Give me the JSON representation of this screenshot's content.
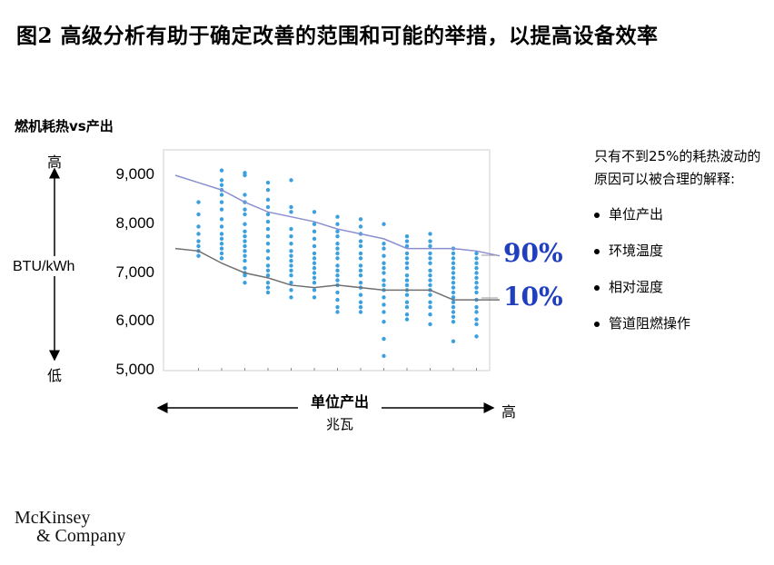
{
  "title": "图2 高级分析有助于确定改善的范围和可能的举措，以提高设备效率",
  "subtitle": "燃机耗热vs产出",
  "y_axis": {
    "top_label": "高",
    "unit": "BTU/kWh",
    "bottom_label": "低"
  },
  "x_axis": {
    "title": "单位产出",
    "unit": "兆瓦",
    "right_label": "高"
  },
  "percentile_labels": {
    "p90": "90%",
    "p10": "10%"
  },
  "notes": {
    "intro": "只有不到25%的耗热波动的原因可以被合理的解释:",
    "bullets": [
      "单位产出",
      "环境温度",
      "相对湿度",
      "管道阻燃操作"
    ]
  },
  "logo": {
    "line1": "McKinsey",
    "line2": "& Company"
  },
  "colors": {
    "dots": "#3aa0e0",
    "p90_line": "#8a8fd0",
    "p10_line": "#707070",
    "pct_text": "#1f3fbf",
    "grid": "#dddddd"
  },
  "chart_data": {
    "type": "scatter",
    "xlabel": "单位产出",
    "ylabel": "BTU/kWh",
    "ylim": [
      5000,
      9000
    ],
    "yticks": [
      "9,000",
      "8,000",
      "7,000",
      "6,000",
      "5,000"
    ],
    "ytick_values": [
      9000,
      8000,
      7000,
      6000,
      5000
    ],
    "grid": false,
    "columns": [
      {
        "x": 1,
        "y": [
          8450,
          8200,
          7950,
          7800,
          7650,
          7550,
          7450,
          7350
        ]
      },
      {
        "x": 2,
        "y": [
          9100,
          8900,
          8800,
          8700,
          8600,
          8450,
          8300,
          8100,
          7950,
          7800,
          7700,
          7600,
          7500,
          7400,
          7300
        ]
      },
      {
        "x": 3,
        "y": [
          9050,
          9000,
          8600,
          8450,
          8300,
          8200,
          8000,
          7850,
          7750,
          7650,
          7550,
          7450,
          7350,
          7250,
          7100,
          7000,
          6950,
          6800
        ]
      },
      {
        "x": 4,
        "y": [
          8850,
          8700,
          8500,
          8350,
          8200,
          8050,
          7900,
          7750,
          7600,
          7450,
          7300,
          7150,
          7050,
          6950,
          6800,
          6700,
          6600
        ]
      },
      {
        "x": 5,
        "y": [
          8900,
          8350,
          8250,
          7900,
          7750,
          7600,
          7450,
          7350,
          7250,
          7150,
          7050,
          6950,
          6800,
          6650,
          6500
        ]
      },
      {
        "x": 6,
        "y": [
          8250,
          8000,
          7850,
          7700,
          7550,
          7400,
          7300,
          7200,
          7100,
          7000,
          6900,
          6800,
          6650,
          6500
        ]
      },
      {
        "x": 7,
        "y": [
          8150,
          8000,
          7850,
          7750,
          7600,
          7500,
          7400,
          7300,
          7150,
          7050,
          6950,
          6850,
          6750,
          6600,
          6450,
          6300,
          6200
        ]
      },
      {
        "x": 8,
        "y": [
          8100,
          7950,
          7800,
          7650,
          7550,
          7400,
          7300,
          7150,
          7050,
          6950,
          6800,
          6700,
          6550,
          6400,
          6300,
          6200
        ]
      },
      {
        "x": 9,
        "y": [
          8000,
          7600,
          7500,
          7350,
          7200,
          7100,
          7000,
          6850,
          6750,
          6650,
          6500,
          6350,
          6200,
          6000,
          5650,
          5300
        ]
      },
      {
        "x": 10,
        "y": [
          7750,
          7650,
          7550,
          7400,
          7300,
          7200,
          7100,
          6950,
          6850,
          6750,
          6650,
          6550,
          6400,
          6300,
          6150,
          6050
        ]
      },
      {
        "x": 11,
        "y": [
          7800,
          7650,
          7550,
          7400,
          7300,
          7200,
          7050,
          6950,
          6850,
          6750,
          6650,
          6550,
          6400,
          6300,
          6150,
          5950
        ]
      },
      {
        "x": 12,
        "y": [
          7500,
          7400,
          7300,
          7200,
          7100,
          7000,
          6900,
          6800,
          6700,
          6600,
          6500,
          6400,
          6300,
          6200,
          6100,
          6000,
          5600
        ]
      },
      {
        "x": 13,
        "y": [
          7400,
          7300,
          7200,
          7100,
          7000,
          6900,
          6800,
          6700,
          6600,
          6450,
          6300,
          6200,
          6050,
          5950,
          5700
        ]
      }
    ],
    "series": [
      {
        "name": "90%",
        "x": [
          0,
          1,
          2,
          3,
          4,
          5,
          6,
          7,
          8,
          9,
          10,
          11,
          12,
          13,
          14
        ],
        "values": [
          9000,
          8850,
          8700,
          8450,
          8250,
          8150,
          8050,
          7900,
          7800,
          7700,
          7500,
          7500,
          7500,
          7450,
          7350
        ]
      },
      {
        "name": "10%",
        "x": [
          0,
          1,
          2,
          3,
          4,
          5,
          6,
          7,
          8,
          9,
          10,
          11,
          12,
          13,
          14
        ],
        "values": [
          7500,
          7450,
          7200,
          7000,
          6900,
          6750,
          6700,
          6750,
          6700,
          6650,
          6650,
          6650,
          6450,
          6450,
          6450
        ]
      }
    ]
  }
}
